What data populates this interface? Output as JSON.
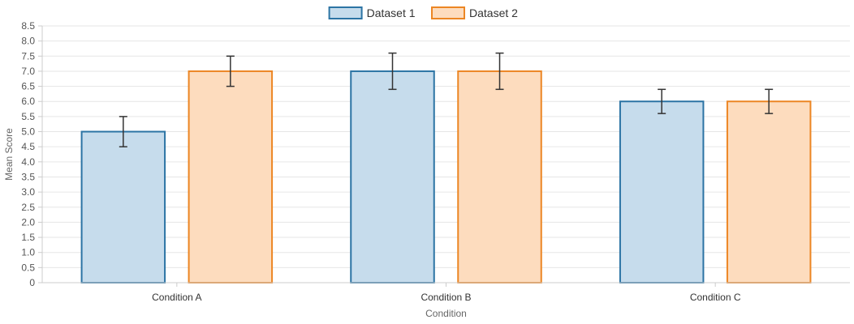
{
  "chart_data": {
    "type": "bar",
    "categories": [
      "Condition A",
      "Condition B",
      "Condition C"
    ],
    "series": [
      {
        "name": "Dataset 1",
        "values": [
          5.0,
          7.0,
          6.0
        ],
        "error_low": [
          4.5,
          6.4,
          5.6
        ],
        "error_high": [
          5.5,
          7.6,
          6.4
        ],
        "fill_color": "#c6dcec",
        "border_color": "#2c74a4"
      },
      {
        "name": "Dataset 2",
        "values": [
          7.0,
          7.0,
          6.0
        ],
        "error_low": [
          6.5,
          6.4,
          5.6
        ],
        "error_high": [
          7.5,
          7.6,
          6.4
        ],
        "fill_color": "#fddcbe",
        "border_color": "#ec8624"
      }
    ],
    "title": "",
    "xlabel": "Condition",
    "ylabel": "Mean Score",
    "ylim": [
      0,
      8.5
    ],
    "ytick_step": 0.5,
    "yticks": [
      "0",
      "0.5",
      "1.0",
      "1.5",
      "2.0",
      "2.5",
      "3.0",
      "3.5",
      "4.0",
      "4.5",
      "5.0",
      "5.5",
      "6.0",
      "6.5",
      "7.0",
      "7.5",
      "8.0",
      "8.5"
    ],
    "grid": true,
    "legend_position": "top-center",
    "gridline_color": "#e6e6e6",
    "axis_color": "#cccccc",
    "errorbar_color": "#333333"
  }
}
